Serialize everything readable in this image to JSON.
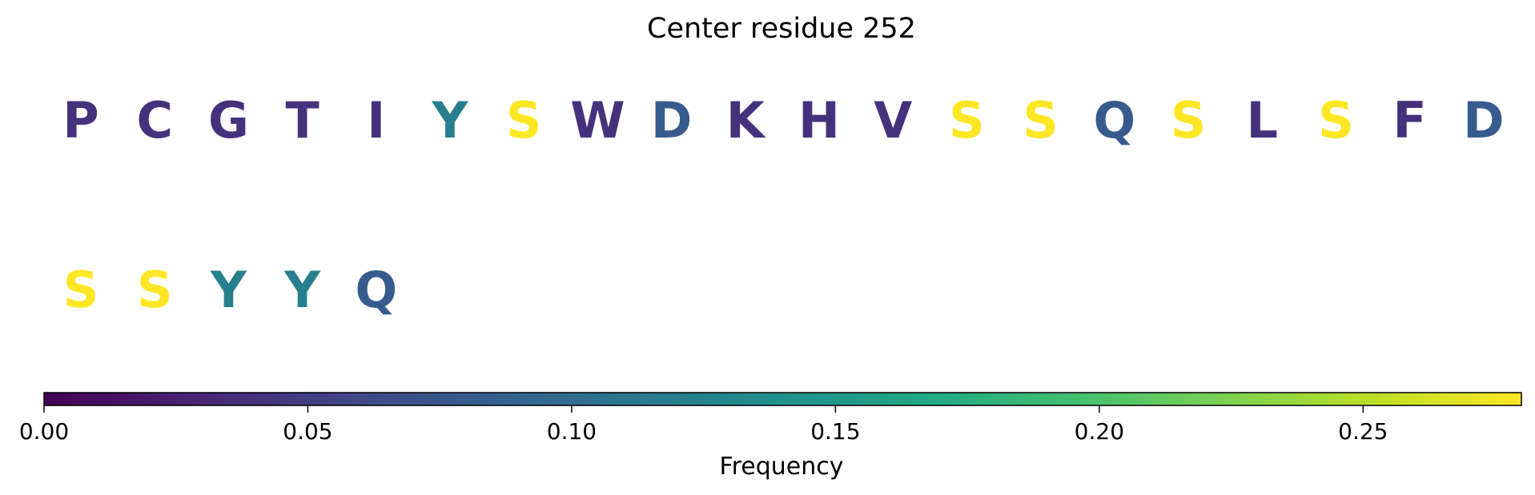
{
  "chart_data": {
    "type": "sequence-colored-letters",
    "title": "Center residue 252",
    "residues": [
      {
        "letter": "P",
        "frequency": 0.04
      },
      {
        "letter": "C",
        "frequency": 0.04
      },
      {
        "letter": "G",
        "frequency": 0.04
      },
      {
        "letter": "T",
        "frequency": 0.04
      },
      {
        "letter": "I",
        "frequency": 0.04
      },
      {
        "letter": "Y",
        "frequency": 0.12
      },
      {
        "letter": "S",
        "frequency": 0.28
      },
      {
        "letter": "W",
        "frequency": 0.04
      },
      {
        "letter": "D",
        "frequency": 0.08
      },
      {
        "letter": "K",
        "frequency": 0.04
      },
      {
        "letter": "H",
        "frequency": 0.04
      },
      {
        "letter": "V",
        "frequency": 0.04
      },
      {
        "letter": "S",
        "frequency": 0.28
      },
      {
        "letter": "S",
        "frequency": 0.28
      },
      {
        "letter": "Q",
        "frequency": 0.08
      },
      {
        "letter": "S",
        "frequency": 0.28
      },
      {
        "letter": "L",
        "frequency": 0.04
      },
      {
        "letter": "S",
        "frequency": 0.28
      },
      {
        "letter": "F",
        "frequency": 0.04
      },
      {
        "letter": "D",
        "frequency": 0.08
      },
      {
        "letter": "S",
        "frequency": 0.28
      },
      {
        "letter": "S",
        "frequency": 0.28
      },
      {
        "letter": "Y",
        "frequency": 0.12
      },
      {
        "letter": "Y",
        "frequency": 0.12
      },
      {
        "letter": "Q",
        "frequency": 0.08
      }
    ],
    "letters_per_row": 20,
    "colorbar": {
      "label": "Frequency",
      "colormap": "viridis",
      "range": [
        0,
        0.28
      ],
      "ticks": [
        0.0,
        0.05,
        0.1,
        0.15,
        0.2,
        0.25
      ],
      "tick_labels": [
        "0.00",
        "0.05",
        "0.10",
        "0.15",
        "0.20",
        "0.25"
      ]
    }
  }
}
